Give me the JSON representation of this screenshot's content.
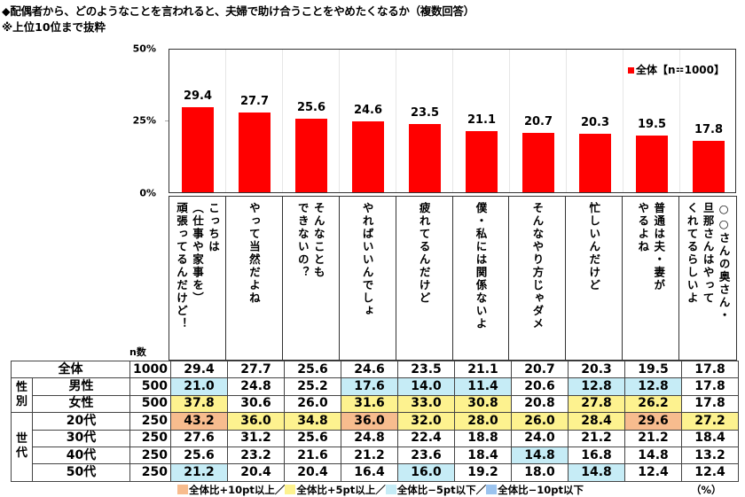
{
  "header": {
    "title": "◆配偶者から、どのようなことを言われると、夫婦で助け合うことをやめたくなるか（複数回答）",
    "subtitle": "※上位10位まで抜粋"
  },
  "chart_data": {
    "type": "bar",
    "title": "配偶者から、どのようなことを言われると、夫婦で助け合うことをやめたくなるか（複数回答）",
    "subtitle": "※上位10位まで抜粋",
    "categories": [
      "こっちは（仕事や家事を）頑張ってるんだけど！",
      "やって当然だよね",
      "そんなこともできないの？",
      "やればいいんでしょ",
      "疲れてるんだけど",
      "僕・私には関係ないよ",
      "そんなやり方じゃダメ",
      "忙しいんだけど",
      "普通は夫・妻がやるよね",
      "○○さんの奥さん・旦那さんはやってくれてるらしいよ"
    ],
    "series": [
      {
        "name": "全体【n=1000】",
        "color": "#ff0000",
        "values": [
          29.4,
          27.7,
          25.6,
          24.6,
          23.5,
          21.1,
          20.7,
          20.3,
          19.5,
          17.8
        ]
      }
    ],
    "xlabel": "",
    "ylabel": "",
    "yticks": [
      "0%",
      "25%",
      "50%"
    ],
    "ylim": [
      0,
      50
    ],
    "legend_position": "top-right",
    "table": {
      "columns": [
        "n数"
      ],
      "rows": [
        {
          "group": "",
          "label": "全体",
          "n": 1000,
          "values": [
            29.4,
            27.7,
            25.6,
            24.6,
            23.5,
            21.1,
            20.7,
            20.3,
            19.5,
            17.8
          ]
        },
        {
          "group": "性別",
          "label": "男性",
          "n": 500,
          "values": [
            21.0,
            24.8,
            25.2,
            17.6,
            14.0,
            11.4,
            20.6,
            12.8,
            12.8,
            17.8
          ]
        },
        {
          "group": "性別",
          "label": "女性",
          "n": 500,
          "values": [
            37.8,
            30.6,
            26.0,
            31.6,
            33.0,
            30.8,
            20.8,
            27.8,
            26.2,
            17.8
          ]
        },
        {
          "group": "世代",
          "label": "20代",
          "n": 250,
          "values": [
            43.2,
            36.0,
            34.8,
            36.0,
            32.0,
            28.0,
            26.0,
            28.4,
            29.6,
            27.2
          ]
        },
        {
          "group": "世代",
          "label": "30代",
          "n": 250,
          "values": [
            27.6,
            31.2,
            25.6,
            24.8,
            22.4,
            18.8,
            24.0,
            21.2,
            21.2,
            18.4
          ]
        },
        {
          "group": "世代",
          "label": "40代",
          "n": 250,
          "values": [
            25.6,
            23.2,
            21.6,
            21.2,
            23.6,
            18.4,
            14.8,
            16.8,
            14.8,
            13.2
          ]
        },
        {
          "group": "世代",
          "label": "50代",
          "n": 250,
          "values": [
            21.2,
            20.4,
            20.4,
            16.4,
            16.0,
            19.2,
            18.0,
            14.8,
            12.4,
            12.4
          ]
        }
      ],
      "unit": "（%）"
    }
  },
  "chart": {
    "legend_label": "全体【n=1000】",
    "yticks": {
      "top": "50%",
      "mid": "25%",
      "bottom": "0%"
    },
    "labels": [
      [
        "こっちは",
        "（仕事や家事を）",
        "頑張ってるんだけど！"
      ],
      [
        "やって当然だよね"
      ],
      [
        "そんなことも",
        "できないの？"
      ],
      [
        "やればいいんでしょ"
      ],
      [
        "疲れてるんだけど"
      ],
      [
        "僕・私には関係ないよ"
      ],
      [
        "そんなやり方じゃダメ"
      ],
      [
        "忙しいんだけど"
      ],
      [
        "普通は夫・妻が",
        "やるよね"
      ],
      [
        "○○さんの奥さん・",
        "旦那さんはやって",
        "くれてるらしいよ"
      ]
    ],
    "values": [
      "29.4",
      "27.7",
      "25.6",
      "24.6",
      "23.5",
      "21.1",
      "20.7",
      "20.3",
      "19.5",
      "17.8"
    ]
  },
  "table": {
    "n_header": "n数",
    "groups": {
      "gender": "性別",
      "gender_chars": [
        "性",
        "別"
      ],
      "age_chars": [
        "世",
        "代"
      ]
    },
    "rows": [
      {
        "label": "全体",
        "n": "1000",
        "cells": [
          "29.4",
          "27.7",
          "25.6",
          "24.6",
          "23.5",
          "21.1",
          "20.7",
          "20.3",
          "19.5",
          "17.8"
        ],
        "colors": [
          "",
          "",
          "",
          "",
          "",
          "",
          "",
          "",
          "",
          ""
        ]
      },
      {
        "label": "男性",
        "n": "500",
        "cells": [
          "21.0",
          "24.8",
          "25.2",
          "17.6",
          "14.0",
          "11.4",
          "20.6",
          "12.8",
          "12.8",
          "17.8"
        ],
        "colors": [
          "lblue",
          "",
          "",
          "lblue",
          "lblue",
          "lblue",
          "",
          "lblue",
          "lblue",
          ""
        ]
      },
      {
        "label": "女性",
        "n": "500",
        "cells": [
          "37.8",
          "30.6",
          "26.0",
          "31.6",
          "33.0",
          "30.8",
          "20.8",
          "27.8",
          "26.2",
          "17.8"
        ],
        "colors": [
          "yellow",
          "",
          "",
          "yellow",
          "yellow",
          "yellow",
          "",
          "yellow",
          "yellow",
          ""
        ]
      },
      {
        "label": "20代",
        "n": "250",
        "cells": [
          "43.2",
          "36.0",
          "34.8",
          "36.0",
          "32.0",
          "28.0",
          "26.0",
          "28.4",
          "29.6",
          "27.2"
        ],
        "colors": [
          "orange",
          "yellow",
          "yellow",
          "orange",
          "yellow",
          "yellow",
          "yellow",
          "yellow",
          "orange",
          "yellow"
        ]
      },
      {
        "label": "30代",
        "n": "250",
        "cells": [
          "27.6",
          "31.2",
          "25.6",
          "24.8",
          "22.4",
          "18.8",
          "24.0",
          "21.2",
          "21.2",
          "18.4"
        ],
        "colors": [
          "",
          "",
          "",
          "",
          "",
          "",
          "",
          "",
          "",
          ""
        ]
      },
      {
        "label": "40代",
        "n": "250",
        "cells": [
          "25.6",
          "23.2",
          "21.6",
          "21.2",
          "23.6",
          "18.4",
          "14.8",
          "16.8",
          "14.8",
          "13.2"
        ],
        "colors": [
          "",
          "",
          "",
          "",
          "",
          "",
          "lblue",
          "",
          "",
          ""
        ]
      },
      {
        "label": "50代",
        "n": "250",
        "cells": [
          "21.2",
          "20.4",
          "20.4",
          "16.4",
          "16.0",
          "19.2",
          "18.0",
          "14.8",
          "12.4",
          "12.4"
        ],
        "colors": [
          "lblue",
          "",
          "",
          "",
          "lblue",
          "",
          "",
          "lblue",
          "",
          ""
        ]
      }
    ]
  },
  "footer": {
    "legend": [
      {
        "label": "全体比+10pt以上／",
        "color": "#f7bc8e"
      },
      {
        "label": "全体比+5pt以上／",
        "color": "#fdf28f"
      },
      {
        "label": "全体比−5pt以下／",
        "color": "#c6ecf6"
      },
      {
        "label": "全体比−10pt以下",
        "color": "#9bc3ee"
      }
    ],
    "unit": "（%）"
  },
  "colors": {
    "bar": "#ff0000",
    "orange": "#f7bc8e",
    "yellow": "#fdf28f",
    "lblue": "#c6ecf6",
    "blue": "#9bc3ee"
  }
}
